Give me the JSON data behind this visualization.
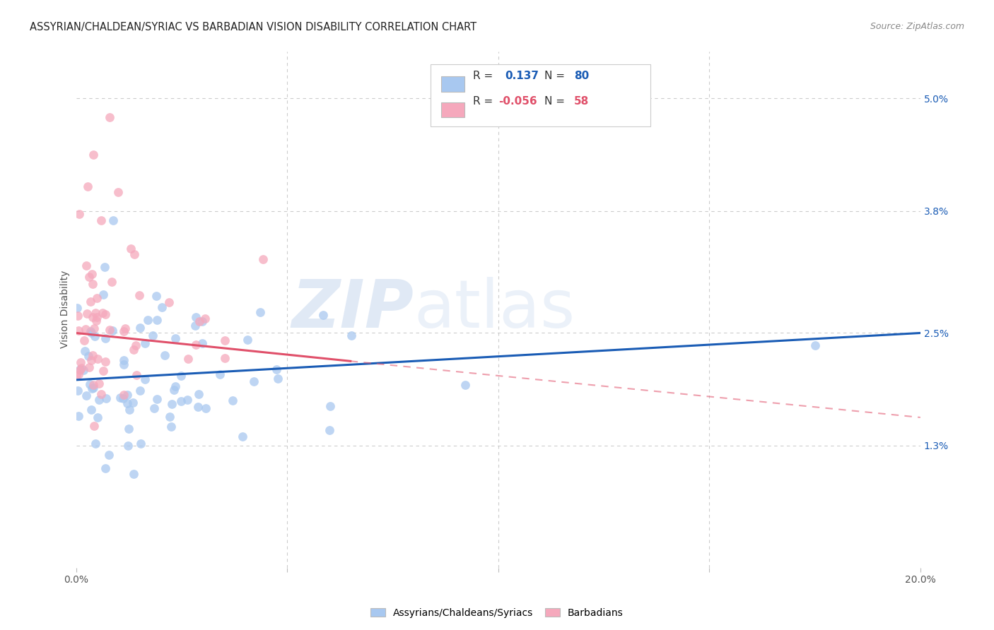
{
  "title": "ASSYRIAN/CHALDEAN/SYRIAC VS BARBADIAN VISION DISABILITY CORRELATION CHART",
  "source": "Source: ZipAtlas.com",
  "ylabel": "Vision Disability",
  "watermark": "ZIPatlas",
  "xlim": [
    0.0,
    0.2
  ],
  "ylim": [
    0.0,
    0.055
  ],
  "ytick_labels_right": [
    "1.3%",
    "2.5%",
    "3.8%",
    "5.0%"
  ],
  "ytick_values_right": [
    0.013,
    0.025,
    0.038,
    0.05
  ],
  "blue_color": "#A8C8F0",
  "pink_color": "#F5A8BC",
  "blue_line_color": "#1A5CB5",
  "pink_line_color": "#E0506A",
  "background_color": "#FFFFFF",
  "grid_color": "#CCCCCC",
  "blue_n": 80,
  "pink_n": 58,
  "blue_r": 0.137,
  "pink_r": -0.056,
  "blue_line_x0": 0.0,
  "blue_line_y0": 0.02,
  "blue_line_x1": 0.2,
  "blue_line_y1": 0.025,
  "pink_line_x0": 0.0,
  "pink_line_y0": 0.025,
  "pink_line_x1_solid": 0.065,
  "pink_line_y1_solid": 0.022,
  "pink_line_x1_dash": 0.2,
  "pink_line_y1_dash": 0.016
}
